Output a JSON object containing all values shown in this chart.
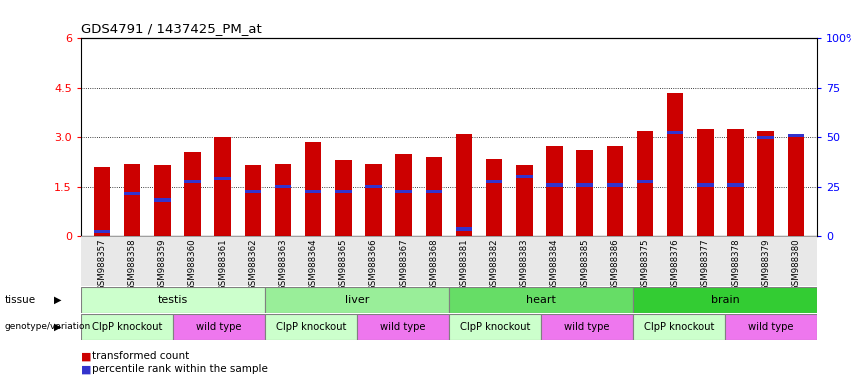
{
  "title": "GDS4791 / 1437425_PM_at",
  "samples": [
    "GSM988357",
    "GSM988358",
    "GSM988359",
    "GSM988360",
    "GSM988361",
    "GSM988362",
    "GSM988363",
    "GSM988364",
    "GSM988365",
    "GSM988366",
    "GSM988367",
    "GSM988368",
    "GSM988381",
    "GSM988382",
    "GSM988383",
    "GSM988384",
    "GSM988385",
    "GSM988386",
    "GSM988375",
    "GSM988376",
    "GSM988377",
    "GSM988378",
    "GSM988379",
    "GSM988380"
  ],
  "bar_heights": [
    2.1,
    2.2,
    2.15,
    2.55,
    3.0,
    2.15,
    2.2,
    2.85,
    2.3,
    2.2,
    2.5,
    2.4,
    3.1,
    2.35,
    2.15,
    2.75,
    2.6,
    2.75,
    3.2,
    4.35,
    3.25,
    3.25,
    3.2,
    3.1
  ],
  "blue_marks": [
    0.15,
    1.3,
    1.1,
    1.65,
    1.75,
    1.35,
    1.5,
    1.35,
    1.35,
    1.5,
    1.35,
    1.35,
    0.22,
    1.65,
    1.8,
    1.55,
    1.55,
    1.55,
    1.65,
    3.15,
    1.55,
    1.55,
    3.0,
    3.05
  ],
  "ylim_left": [
    0,
    6
  ],
  "ylim_right": [
    0,
    100
  ],
  "yticks_left": [
    0,
    1.5,
    3.0,
    4.5,
    6.0
  ],
  "yticks_right": [
    0,
    25,
    50,
    75,
    100
  ],
  "bar_color": "#cc0000",
  "blue_color": "#3333cc",
  "tissue_colors": [
    "#ccffcc",
    "#99ee99",
    "#66dd66",
    "#33cc33"
  ],
  "tissue_labels": [
    "testis",
    "liver",
    "heart",
    "brain"
  ],
  "tissue_ranges": [
    [
      0,
      6
    ],
    [
      6,
      12
    ],
    [
      12,
      18
    ],
    [
      18,
      24
    ]
  ],
  "geno_data": [
    [
      0,
      3,
      "#ccffcc",
      "ClpP knockout"
    ],
    [
      3,
      6,
      "#ee77ee",
      "wild type"
    ],
    [
      6,
      9,
      "#ccffcc",
      "ClpP knockout"
    ],
    [
      9,
      12,
      "#ee77ee",
      "wild type"
    ],
    [
      12,
      15,
      "#ccffcc",
      "ClpP knockout"
    ],
    [
      15,
      18,
      "#ee77ee",
      "wild type"
    ],
    [
      18,
      21,
      "#ccffcc",
      "ClpP knockout"
    ],
    [
      21,
      24,
      "#ee77ee",
      "wild type"
    ]
  ],
  "legend_items": [
    "transformed count",
    "percentile rank within the sample"
  ]
}
